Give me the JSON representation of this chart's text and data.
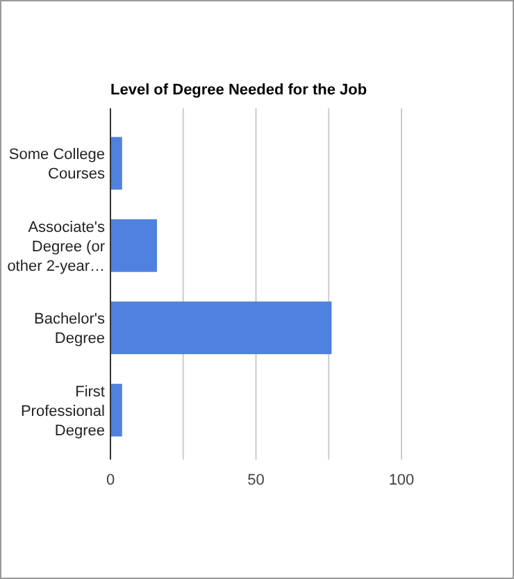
{
  "chart_data": {
    "type": "bar",
    "orientation": "horizontal",
    "title": "Level of Degree Needed for the Job",
    "categories": [
      "Some College Courses",
      "Associate's Degree (or other 2-year…",
      "Bachelor's Degree",
      "First Professional Degree"
    ],
    "values": [
      4,
      16,
      76,
      4
    ],
    "color": "#4f81e0",
    "xlim": [
      0,
      100
    ],
    "xticks": [
      0,
      {
        "value": 25,
        "label": null
      },
      50,
      {
        "value": 75,
        "label": null
      },
      100
    ],
    "grid": "x"
  }
}
